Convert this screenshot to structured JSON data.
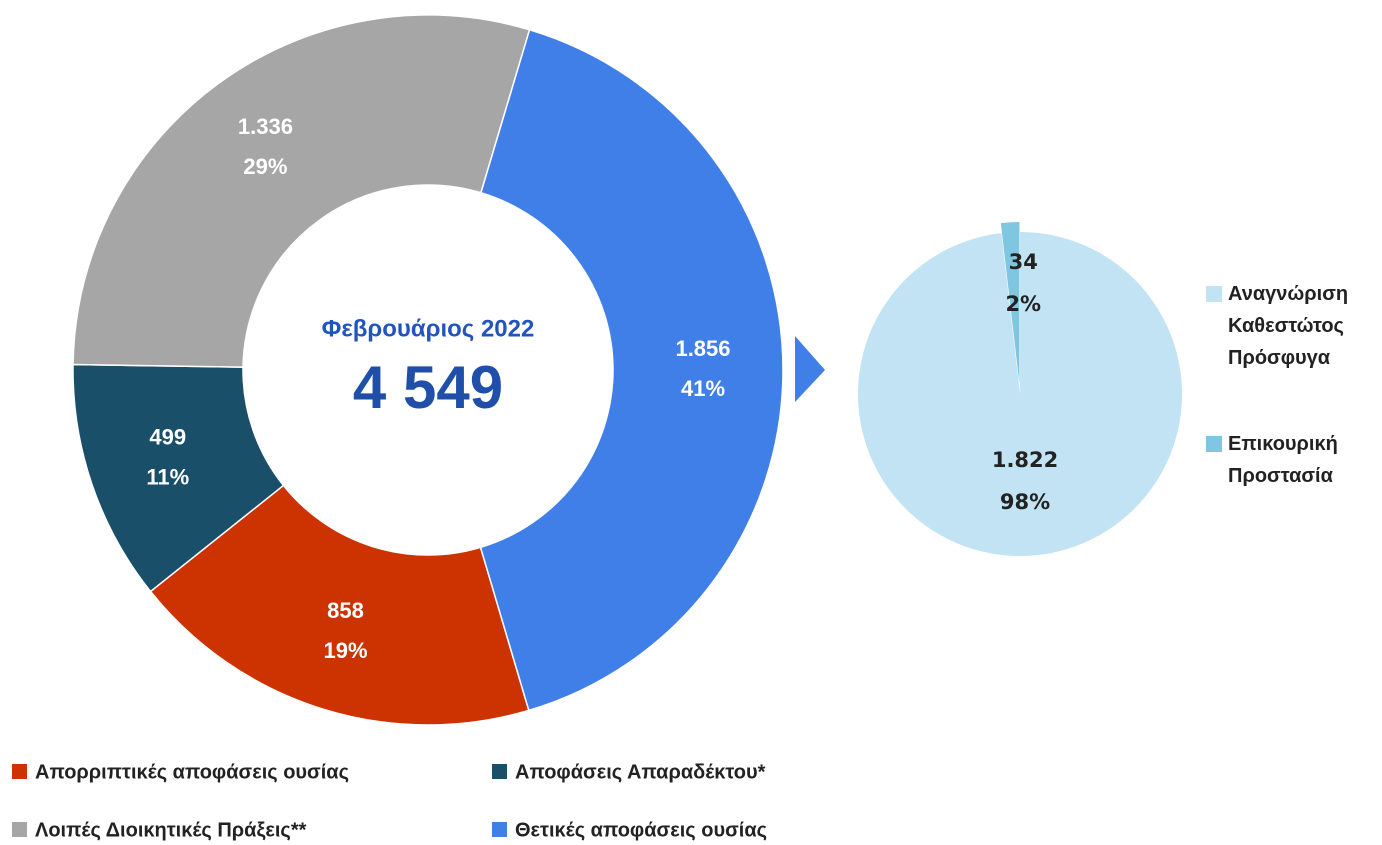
{
  "chart_data": [
    {
      "type": "donut",
      "center_title": "Φεβρουάριος 2022",
      "total": 4549,
      "total_label": "4 549",
      "categories": [
        "Απορριπτικές αποφάσεις ουσίας",
        "Αποφάσεις Απαραδέκτου*",
        "Λοιπές Διοικητικές Πράξεις**",
        "Θετικές αποφάσεις ουσίας"
      ],
      "values": [
        858,
        499,
        1336,
        1856
      ],
      "value_labels": [
        "858",
        "499",
        "1.336",
        "1.856"
      ],
      "percent_labels": [
        "19%",
        "11%",
        "29%",
        "41%"
      ],
      "colors": [
        "#cc3300",
        "#1a4f6a",
        "#a6a6a6",
        "#407ee8"
      ]
    },
    {
      "type": "pie",
      "categories": [
        "Αναγνώριση Καθεστώτος Πρόσφυγα",
        "Επικουρική Προστασία"
      ],
      "values": [
        1822,
        34
      ],
      "value_labels": [
        "1.822",
        "34"
      ],
      "percent_labels": [
        "98%",
        "2%"
      ],
      "colors": [
        "#c2e3f3",
        "#7fc6e0"
      ]
    }
  ]
}
